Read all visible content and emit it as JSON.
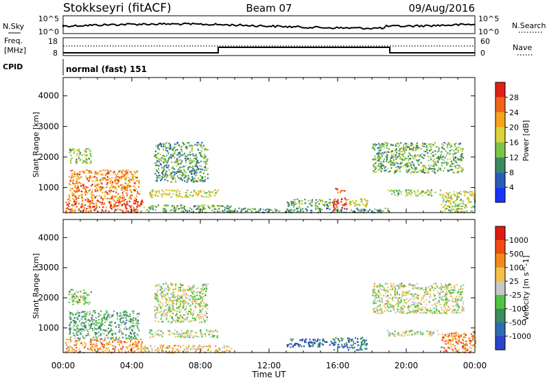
{
  "header": {
    "station": "Stokkseyri (fitACF)",
    "beam": "Beam 07",
    "date": "09/Aug/2016"
  },
  "noise_panel": {
    "left_label": "N.Sky",
    "right_label": "N.Search",
    "left_ticks": [
      "10^5",
      "10^0"
    ],
    "right_ticks": [
      "10^5",
      "10^0"
    ]
  },
  "freq_panel": {
    "left_label_1": "Freq.",
    "left_label_2": "[MHz]",
    "left_ticks": [
      "18",
      "8"
    ],
    "right_label": "Nave",
    "right_ticks": [
      "60",
      "0"
    ]
  },
  "cpid": {
    "label": "CPID",
    "value": "normal (fast) 151"
  },
  "chart_data": [
    {
      "type": "heatmap",
      "title": "",
      "xlabel": "",
      "ylabel": "Slant Range [km]",
      "x_ticks": [
        "00:00",
        "04:00",
        "08:00",
        "12:00",
        "16:00",
        "20:00",
        "00:00"
      ],
      "y_ticks": [
        "1000",
        "2000",
        "3000",
        "4000"
      ],
      "xlim": [
        0,
        24
      ],
      "ylim": [
        180,
        4600
      ],
      "colorbar": {
        "label": "Power [dB]",
        "ticks": [
          "4",
          "8",
          "12",
          "16",
          "20",
          "24",
          "28"
        ],
        "colors": [
          "#1a32ff",
          "#2a5db8",
          "#3d8a60",
          "#7cc34a",
          "#d8d43a",
          "#f5a21c",
          "#f2641a",
          "#e02016"
        ]
      },
      "regions": [
        {
          "t0": 0.1,
          "t1": 4.6,
          "r0": 200,
          "r1": 650,
          "level": 0.85
        },
        {
          "t0": 0.3,
          "t1": 4.4,
          "r0": 650,
          "r1": 1600,
          "level": 0.75
        },
        {
          "t0": 0.3,
          "t1": 1.6,
          "r0": 1800,
          "r1": 2300,
          "level": 0.45
        },
        {
          "t0": 4.5,
          "t1": 9.8,
          "r0": 200,
          "r1": 450,
          "level": 0.4
        },
        {
          "t0": 5.3,
          "t1": 8.4,
          "r0": 1200,
          "r1": 2500,
          "level": 0.35
        },
        {
          "t0": 5.0,
          "t1": 9.0,
          "r0": 700,
          "r1": 950,
          "level": 0.55
        },
        {
          "t0": 9.5,
          "t1": 19.0,
          "r0": 200,
          "r1": 350,
          "level": 0.3
        },
        {
          "t0": 13.0,
          "t1": 15.8,
          "r0": 380,
          "r1": 650,
          "level": 0.4
        },
        {
          "t0": 15.7,
          "t1": 16.5,
          "r0": 280,
          "r1": 700,
          "level": 0.95
        },
        {
          "t0": 16.6,
          "t1": 17.7,
          "r0": 380,
          "r1": 650,
          "level": 0.55
        },
        {
          "t0": 15.8,
          "t1": 16.4,
          "r0": 850,
          "r1": 1000,
          "level": 0.8
        },
        {
          "t0": 18.0,
          "t1": 23.3,
          "r0": 1500,
          "r1": 2500,
          "level": 0.4
        },
        {
          "t0": 18.8,
          "t1": 22.0,
          "r0": 750,
          "r1": 950,
          "level": 0.45
        },
        {
          "t0": 22.0,
          "t1": 24.0,
          "r0": 200,
          "r1": 900,
          "level": 0.5
        }
      ]
    },
    {
      "type": "heatmap",
      "title": "",
      "xlabel": "Time UT",
      "ylabel": "Slant Range [km]",
      "x_ticks": [
        "00:00",
        "04:00",
        "08:00",
        "12:00",
        "16:00",
        "20:00",
        "00:00"
      ],
      "y_ticks": [
        "1000",
        "2000",
        "3000",
        "4000"
      ],
      "xlim": [
        0,
        24
      ],
      "ylim": [
        180,
        4600
      ],
      "colorbar": {
        "label": "Velocity [m s^-1]",
        "ticks": [
          "1000",
          "500",
          "100",
          "25",
          "-25",
          "-100",
          "-500",
          "-1000"
        ],
        "colors": [
          "#2b44c8",
          "#2f6ab3",
          "#3c8c5e",
          "#4fc442",
          "#c8c8c8",
          "#f3c04a",
          "#f28a1a",
          "#f24a14",
          "#e01a10"
        ]
      },
      "regions": [
        {
          "t0": 0.1,
          "t1": 4.6,
          "r0": 200,
          "r1": 650,
          "level": 0.7
        },
        {
          "t0": 0.3,
          "t1": 4.4,
          "r0": 650,
          "r1": 1600,
          "level": 0.35
        },
        {
          "t0": 0.3,
          "t1": 1.6,
          "r0": 1800,
          "r1": 2300,
          "level": 0.45
        },
        {
          "t0": 4.5,
          "t1": 9.8,
          "r0": 200,
          "r1": 450,
          "level": 0.6
        },
        {
          "t0": 5.3,
          "t1": 8.4,
          "r0": 1200,
          "r1": 2500,
          "level": 0.5
        },
        {
          "t0": 5.0,
          "t1": 9.0,
          "r0": 700,
          "r1": 950,
          "level": 0.5
        },
        {
          "t0": 13.0,
          "t1": 15.8,
          "r0": 380,
          "r1": 650,
          "level": 0.15
        },
        {
          "t0": 15.7,
          "t1": 17.7,
          "r0": 280,
          "r1": 700,
          "level": 0.2
        },
        {
          "t0": 18.0,
          "t1": 23.3,
          "r0": 1500,
          "r1": 2500,
          "level": 0.5
        },
        {
          "t0": 18.8,
          "t1": 22.0,
          "r0": 750,
          "r1": 950,
          "level": 0.5
        },
        {
          "t0": 22.0,
          "t1": 24.0,
          "r0": 200,
          "r1": 900,
          "level": 0.75
        }
      ]
    }
  ]
}
